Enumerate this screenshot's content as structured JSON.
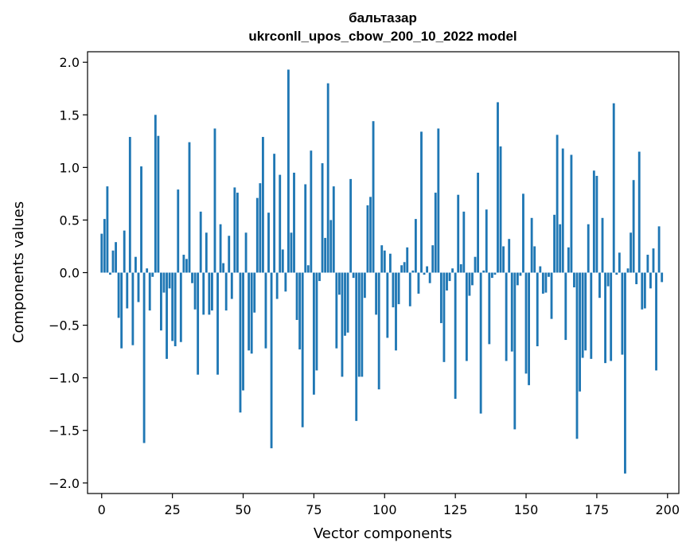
{
  "chart_data": {
    "type": "bar",
    "title_line1": "бальтазар",
    "title_line2": "ukrconll_upos_cbow_200_10_2022 model",
    "xlabel": "Vector components",
    "ylabel": "Components values",
    "xlim": [
      -5,
      204
    ],
    "ylim": [
      -2.1,
      2.1
    ],
    "xticks": [
      0,
      25,
      50,
      75,
      100,
      125,
      150,
      175,
      200
    ],
    "yticks": [
      -2.0,
      -1.5,
      -1.0,
      -0.5,
      0.0,
      0.5,
      1.0,
      1.5,
      2.0
    ],
    "ytick_labels": [
      "−2.0",
      "−1.5",
      "−1.0",
      "−0.5",
      "0.0",
      "0.5",
      "1.0",
      "1.5",
      "2.0"
    ],
    "bar_color": "#1f77b4",
    "grid": false,
    "values": [
      0.37,
      0.51,
      0.82,
      -0.02,
      0.21,
      0.29,
      -0.43,
      -0.72,
      0.4,
      -0.34,
      1.29,
      -0.69,
      0.15,
      -0.28,
      1.01,
      -1.62,
      0.04,
      -0.36,
      -0.04,
      1.5,
      1.3,
      -0.55,
      -0.19,
      -0.82,
      -0.15,
      -0.65,
      -0.7,
      0.79,
      -0.66,
      0.17,
      0.13,
      1.24,
      -0.1,
      -0.35,
      -0.97,
      0.58,
      -0.4,
      0.38,
      -0.4,
      -0.36,
      1.37,
      -0.97,
      0.46,
      0.09,
      -0.36,
      0.35,
      -0.25,
      0.81,
      0.76,
      -1.33,
      -1.12,
      0.38,
      -0.74,
      -0.77,
      -0.38,
      0.71,
      0.85,
      1.29,
      -0.72,
      0.57,
      -1.67,
      1.13,
      -0.25,
      0.93,
      0.22,
      -0.18,
      1.93,
      0.38,
      0.95,
      -0.45,
      -0.73,
      -1.47,
      0.84,
      0.07,
      1.16,
      -1.16,
      -0.93,
      -0.08,
      1.04,
      0.33,
      1.8,
      0.5,
      0.82,
      -0.72,
      -0.21,
      -0.99,
      -0.6,
      -0.57,
      0.89,
      -0.05,
      -1.41,
      -0.99,
      -0.99,
      -0.24,
      0.64,
      0.72,
      1.44,
      -0.4,
      -1.11,
      0.26,
      0.21,
      -0.62,
      0.18,
      -0.33,
      -0.74,
      -0.3,
      0.07,
      0.1,
      0.24,
      -0.32,
      0.02,
      0.51,
      -0.2,
      1.34,
      -0.02,
      0.06,
      -0.1,
      0.26,
      0.76,
      1.37,
      -0.48,
      -0.85,
      -0.17,
      -0.08,
      0.04,
      -1.2,
      0.74,
      0.08,
      0.58,
      -0.84,
      -0.22,
      -0.12,
      0.15,
      0.95,
      -1.34,
      0.02,
      0.6,
      -0.68,
      -0.05,
      -0.02,
      1.62,
      1.2,
      0.25,
      -0.84,
      0.32,
      -0.75,
      -1.49,
      -0.12,
      -0.03,
      0.75,
      -0.96,
      -1.07,
      0.52,
      0.25,
      -0.7,
      0.06,
      -0.2,
      -0.19,
      -0.04,
      -0.44,
      0.55,
      1.31,
      0.46,
      1.18,
      -0.64,
      0.24,
      1.12,
      -0.14,
      -1.58,
      -1.13,
      -0.81,
      -0.74,
      0.46,
      -0.82,
      0.97,
      0.92,
      -0.24,
      0.52,
      -0.86,
      -0.13,
      -0.84,
      1.61,
      -0.02,
      0.19,
      -0.78,
      -1.91,
      0.04,
      0.38,
      0.88,
      -0.11,
      1.15,
      -0.35,
      -0.34,
      0.17,
      -0.15,
      0.23,
      -0.93,
      0.44,
      -0.09
    ]
  }
}
